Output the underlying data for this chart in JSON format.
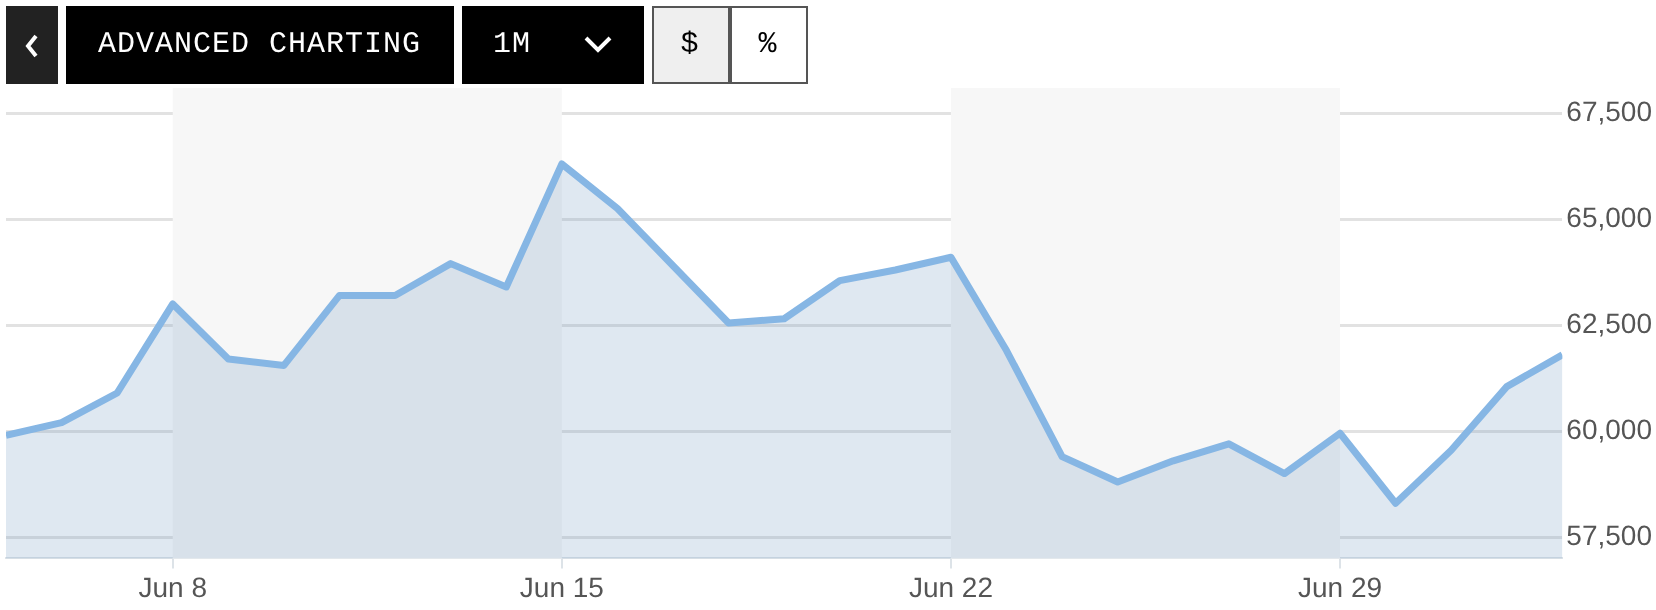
{
  "chart_data": {
    "type": "area",
    "annotations": [
      "ADVANCED CHARTING",
      "1M",
      "$",
      "%"
    ],
    "x": [
      "--06-05",
      "--06-06",
      "--06-07",
      "--06-08",
      "--06-09",
      "--06-10",
      "--06-11",
      "--06-12",
      "--06-13",
      "--06-14",
      "--06-15",
      "--06-16",
      "--06-17",
      "--06-18",
      "--06-19",
      "--06-20",
      "--06-21",
      "--06-22",
      "--06-23",
      "--06-24",
      "--06-25",
      "--06-26",
      "--06-27",
      "--06-28",
      "--06-29",
      "--06-30",
      "--07-01",
      "--07-02",
      "--07-03"
    ],
    "series": [
      {
        "color": "#86b6e4",
        "values": [
          59900,
          60200,
          60900,
          63000,
          61700,
          61550,
          63200,
          63200,
          63950,
          63400,
          66300,
          65250,
          63900,
          62550,
          62650,
          63550,
          63800,
          64100,
          61900,
          59400,
          58800,
          59300,
          59700,
          59000,
          59950,
          58300,
          59550,
          61050,
          61800
        ]
      }
    ],
    "xlim": [
      "--06-05",
      "--07-03"
    ],
    "xticks": [
      {
        "value": "--06-08",
        "label": "Jun 8"
      },
      {
        "value": "--06-15",
        "label": "Jun 15"
      },
      {
        "value": "--06-22",
        "label": "Jun 22"
      },
      {
        "value": "--06-29",
        "label": "Jun 29"
      }
    ],
    "ylim": [
      57000,
      67600
    ],
    "yticks": [
      {
        "value": 57500,
        "label": "57,500"
      },
      {
        "value": 60000,
        "label": "60,000"
      },
      {
        "value": 62500,
        "label": "62,500"
      },
      {
        "value": 65000,
        "label": "65,000"
      },
      {
        "value": 67500,
        "label": "67,500"
      }
    ],
    "bands": [
      {
        "axis": "x",
        "from": "--06-08",
        "to": "--06-15",
        "color": "#f7f7f7"
      },
      {
        "axis": "x",
        "from": "--06-22",
        "to": "--06-29",
        "color": "#f7f7f7"
      }
    ],
    "grid": "y",
    "legend": false,
    "marker": "none",
    "line_style": "solid"
  }
}
